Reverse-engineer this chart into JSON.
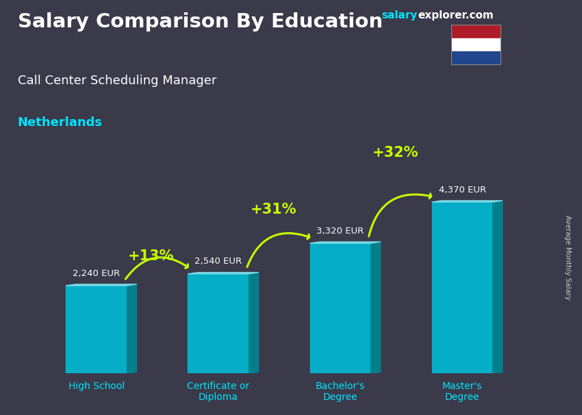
{
  "title": "Salary Comparison By Education",
  "subtitle": "Call Center Scheduling Manager",
  "country": "Netherlands",
  "ylabel_right": "Average Monthly Salary",
  "website_salary": "salary",
  "website_explorer": "explorer.com",
  "categories": [
    "High School",
    "Certificate or\nDiploma",
    "Bachelor's\nDegree",
    "Master's\nDegree"
  ],
  "values": [
    2240,
    2540,
    3320,
    4370
  ],
  "value_labels": [
    "2,240 EUR",
    "2,540 EUR",
    "3,320 EUR",
    "4,370 EUR"
  ],
  "pct_labels": [
    "+13%",
    "+31%",
    "+32%"
  ],
  "bar_color_face": "#00bcd4",
  "bar_color_top": "#80deea",
  "bar_color_side": "#00838f",
  "bg_color": "#3a3a4a",
  "title_color": "#ffffff",
  "subtitle_color": "#ffffff",
  "country_color": "#00e5ff",
  "value_label_color": "#ffffff",
  "pct_label_color": "#c6ff00",
  "arrow_color": "#c6ff00",
  "xtick_color": "#00e5ff",
  "website_color1": "#00e5ff",
  "website_color2": "#ffffff",
  "flag_red": "#AE1C28",
  "flag_white": "#FFFFFF",
  "flag_blue": "#21468B",
  "ylim": [
    0,
    5500
  ],
  "figsize": [
    8.5,
    6.06
  ],
  "dpi": 100
}
